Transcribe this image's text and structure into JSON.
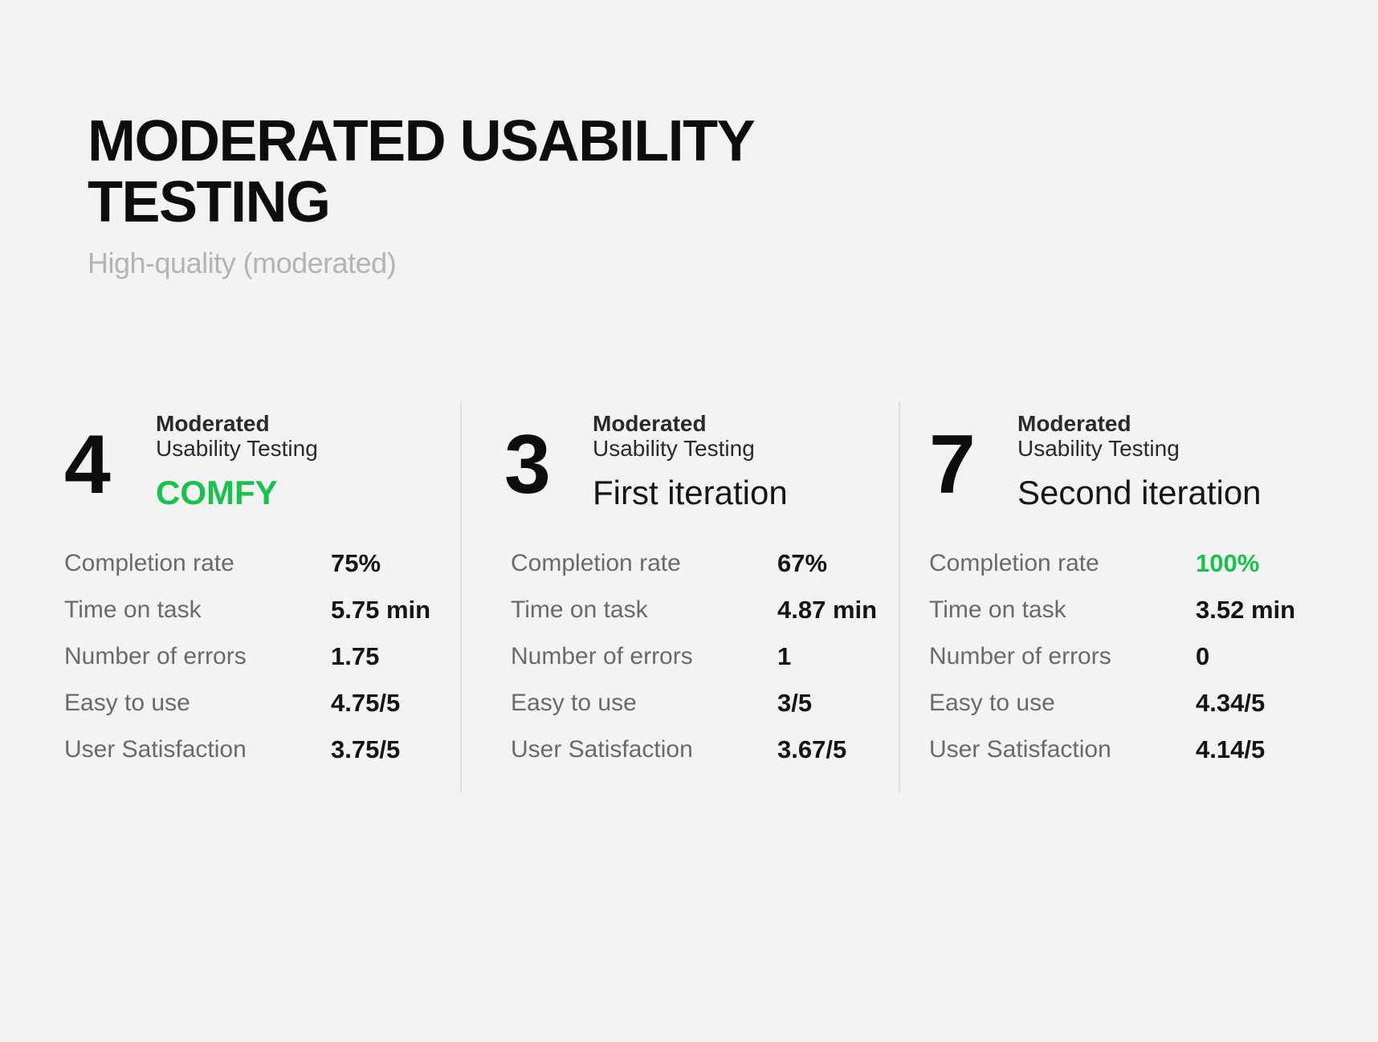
{
  "title_lines": [
    "MODERATED USABILITY",
    "TESTING"
  ],
  "subtitle": "High-quality (moderated)",
  "accent_color": "#18c34d",
  "cards": [
    {
      "count": "4",
      "kicker": "Moderated",
      "kicker_sub": "Usability Testing",
      "variant": "COMFY",
      "metrics": [
        {
          "label": "Completion rate",
          "value": "75%"
        },
        {
          "label": "Time on task",
          "value": "5.75 min"
        },
        {
          "label": "Number of errors",
          "value": "1.75"
        },
        {
          "label": "Easy to use",
          "value": "4.75/5"
        },
        {
          "label": "User Satisfaction",
          "value": "3.75/5"
        }
      ]
    },
    {
      "count": "3",
      "kicker": "Moderated",
      "kicker_sub": "Usability Testing",
      "variant": "First iteration",
      "metrics": [
        {
          "label": "Completion rate",
          "value": "67%"
        },
        {
          "label": "Time on task",
          "value": "4.87 min"
        },
        {
          "label": "Number of errors",
          "value": "1"
        },
        {
          "label": "Easy to use",
          "value": "3/5"
        },
        {
          "label": "User Satisfaction",
          "value": "3.67/5"
        }
      ]
    },
    {
      "count": "7",
      "kicker": "Moderated",
      "kicker_sub": "Usability Testing",
      "variant": "Second iteration",
      "metrics": [
        {
          "label": "Completion rate",
          "value": "100%"
        },
        {
          "label": "Time on task",
          "value": "3.52 min"
        },
        {
          "label": "Number of errors",
          "value": "0"
        },
        {
          "label": "Easy to use",
          "value": "4.34/5"
        },
        {
          "label": "User Satisfaction",
          "value": "4.14/5"
        }
      ]
    }
  ]
}
